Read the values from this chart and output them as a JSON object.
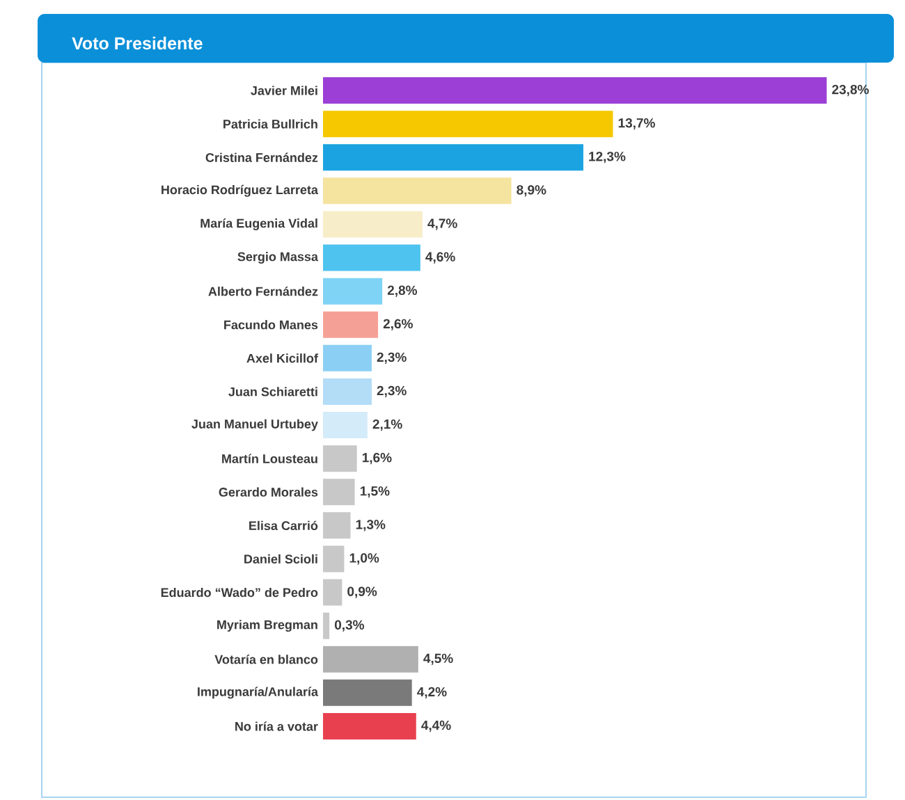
{
  "chart_data": {
    "type": "bar",
    "orientation": "horizontal",
    "title": "Voto Presidente",
    "categories": [
      "Javier Milei",
      "Patricia Bullrich",
      "Cristina Fernández",
      "Horacio Rodríguez Larreta",
      "María Eugenia Vidal",
      "Sergio Massa",
      "Alberto Fernández",
      "Facundo Manes",
      "Axel Kicillof",
      "Juan Schiaretti",
      "Juan Manuel Urtubey",
      "Martín Lousteau",
      "Gerardo Morales",
      "Elisa Carrió",
      "Daniel Scioli",
      "Eduardo “Wado” de Pedro",
      "Myriam Bregman",
      "Votaría en blanco",
      "Impugnaría/Anularía",
      "No iría a votar"
    ],
    "values": [
      23.8,
      13.7,
      12.3,
      8.9,
      4.7,
      4.6,
      2.8,
      2.6,
      2.3,
      2.3,
      2.1,
      1.6,
      1.5,
      1.3,
      1.0,
      0.9,
      0.3,
      4.5,
      4.2,
      4.4
    ],
    "value_labels": [
      "23,8%",
      "13,7%",
      "12,3%",
      "8,9%",
      "4,7%",
      "4,6%",
      "2,8%",
      "2,6%",
      "2,3%",
      "2,3%",
      "2,1%",
      "1,6%",
      "1,5%",
      "1,3%",
      "1,0%",
      "0,9%",
      "0,3%",
      "4,5%",
      "4,2%",
      "4,4%"
    ],
    "colors": [
      "#9b3fd6",
      "#f5c800",
      "#1aa3e0",
      "#f5e3a0",
      "#f7edc8",
      "#4ec3ef",
      "#7fd3f5",
      "#f5a096",
      "#8ccff5",
      "#b3dcf7",
      "#d4ebfa",
      "#c8c8c8",
      "#c8c8c8",
      "#c8c8c8",
      "#c8c8c8",
      "#c8c8c8",
      "#c8c8c8",
      "#b0b0b0",
      "#7a7a7a",
      "#e8404f"
    ]
  }
}
